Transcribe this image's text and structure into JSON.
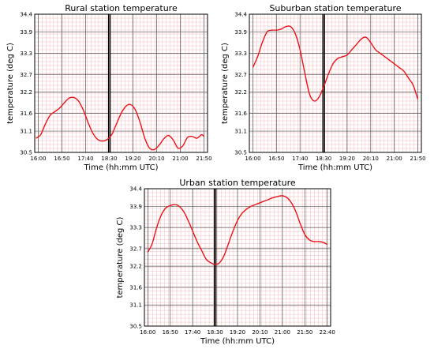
{
  "chart_data": [
    {
      "type": "line",
      "title": "Rural station temperature",
      "xlabel": "Time (hh:mm UTC)",
      "ylabel": "temperature (deg C)",
      "x_ticks": [
        "16:00",
        "16:50",
        "17:40",
        "18:30",
        "19:20",
        "20:10",
        "21:00",
        "21:50"
      ],
      "y_ticks": [
        "30.5",
        "31.1",
        "31.6",
        "32.2",
        "32.7",
        "33.3",
        "33.9",
        "34.4"
      ],
      "ylim": [
        30.5,
        34.4
      ],
      "grid": true,
      "vertical_marker": "18:30",
      "series": [
        {
          "color": "#e8141b",
          "x": [
            "15:55",
            "16:05",
            "16:15",
            "16:25",
            "16:35",
            "16:45",
            "16:55",
            "17:05",
            "17:15",
            "17:25",
            "17:35",
            "17:45",
            "17:55",
            "18:05",
            "18:15",
            "18:25",
            "18:35",
            "18:45",
            "18:55",
            "19:05",
            "19:15",
            "19:25",
            "19:35",
            "19:45",
            "19:55",
            "20:05",
            "20:15",
            "20:25",
            "20:35",
            "20:45",
            "20:55",
            "21:05",
            "21:15",
            "21:25",
            "21:35",
            "21:45",
            "21:50"
          ],
          "y": [
            30.9,
            31.0,
            31.3,
            31.55,
            31.65,
            31.75,
            31.9,
            32.03,
            32.05,
            31.95,
            31.7,
            31.35,
            31.05,
            30.87,
            30.82,
            30.86,
            31.0,
            31.3,
            31.6,
            31.8,
            31.85,
            31.7,
            31.35,
            30.9,
            30.62,
            30.58,
            30.7,
            30.88,
            30.98,
            30.85,
            30.62,
            30.68,
            30.92,
            30.95,
            30.9,
            31.0,
            30.95
          ]
        }
      ]
    },
    {
      "type": "line",
      "title": "Suburban station temperature",
      "xlabel": "Time (hh:mm UTC)",
      "ylabel": "temperature (deg C)",
      "x_ticks": [
        "16:00",
        "16:50",
        "17:40",
        "18:30",
        "19:20",
        "20:10",
        "21:00",
        "21:50"
      ],
      "y_ticks": [
        "30.5",
        "31.1",
        "31.6",
        "32.2",
        "32.7",
        "33.3",
        "33.9",
        "34.4"
      ],
      "ylim": [
        30.5,
        34.4
      ],
      "grid": true,
      "vertical_marker": "18:30",
      "series": [
        {
          "color": "#e8141b",
          "x": [
            "16:00",
            "16:10",
            "16:20",
            "16:30",
            "16:40",
            "16:50",
            "17:00",
            "17:10",
            "17:20",
            "17:30",
            "17:40",
            "17:50",
            "18:00",
            "18:10",
            "18:20",
            "18:30",
            "18:40",
            "18:50",
            "19:00",
            "19:10",
            "19:20",
            "19:30",
            "19:40",
            "19:50",
            "20:00",
            "20:10",
            "20:20",
            "20:30",
            "20:40",
            "20:50",
            "21:00",
            "21:10",
            "21:20",
            "21:30",
            "21:40",
            "21:50"
          ],
          "y": [
            32.9,
            33.2,
            33.6,
            33.9,
            33.95,
            33.95,
            33.98,
            34.05,
            34.05,
            33.85,
            33.4,
            32.75,
            32.15,
            31.95,
            32.05,
            32.35,
            32.7,
            33.0,
            33.15,
            33.2,
            33.25,
            33.4,
            33.55,
            33.7,
            33.75,
            33.6,
            33.4,
            33.3,
            33.2,
            33.1,
            33.0,
            32.9,
            32.8,
            32.6,
            32.4,
            32.0
          ]
        }
      ]
    },
    {
      "type": "line",
      "title": "Urban station temperature",
      "xlabel": "Time (hh:mm UTC)",
      "ylabel": "temperature (deg C)",
      "x_ticks": [
        "16:00",
        "16:50",
        "17:40",
        "18:30",
        "19:20",
        "20:10",
        "21:00",
        "21:50",
        "22:40"
      ],
      "y_ticks": [
        "30.5",
        "31.1",
        "31.6",
        "32.2",
        "32.7",
        "33.3",
        "33.9",
        "34.4"
      ],
      "ylim": [
        30.5,
        34.4
      ],
      "grid": true,
      "vertical_marker": "18:30",
      "series": [
        {
          "color": "#e8141b",
          "x": [
            "16:00",
            "16:10",
            "16:20",
            "16:30",
            "16:40",
            "16:50",
            "17:00",
            "17:10",
            "17:20",
            "17:30",
            "17:40",
            "17:50",
            "18:00",
            "18:10",
            "18:20",
            "18:30",
            "18:40",
            "18:50",
            "19:00",
            "19:10",
            "19:20",
            "19:30",
            "19:40",
            "19:50",
            "20:00",
            "20:10",
            "20:20",
            "20:30",
            "20:40",
            "20:50",
            "21:00",
            "21:10",
            "21:20",
            "21:30",
            "21:40",
            "21:50",
            "22:00",
            "22:10",
            "22:20",
            "22:30",
            "22:40"
          ],
          "y": [
            32.6,
            32.85,
            33.3,
            33.65,
            33.85,
            33.92,
            33.95,
            33.9,
            33.75,
            33.5,
            33.2,
            32.9,
            32.65,
            32.4,
            32.3,
            32.25,
            32.3,
            32.5,
            32.85,
            33.2,
            33.5,
            33.7,
            33.82,
            33.9,
            33.95,
            34.0,
            34.05,
            34.1,
            34.15,
            34.18,
            34.2,
            34.15,
            34.0,
            33.75,
            33.4,
            33.1,
            32.95,
            32.9,
            32.9,
            32.88,
            32.82
          ]
        }
      ]
    }
  ]
}
